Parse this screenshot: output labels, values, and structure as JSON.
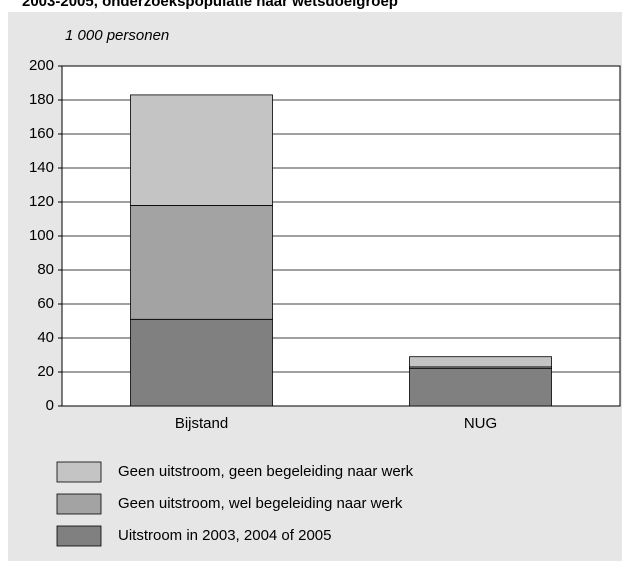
{
  "chart_data": {
    "type": "stacked_bar",
    "title": "2003-2005, onderzoekspopulatie naar wetsdoelgroep",
    "y_label": "1 000 personen",
    "categories": [
      "Bijstand",
      "NUG"
    ],
    "series": [
      {
        "name": "Uitstroom in 2003, 2004 of 2005",
        "color": "#808080",
        "values": [
          51,
          22
        ]
      },
      {
        "name": "Geen uitstroom, wel begeleiding naar werk",
        "color": "#a3a3a3",
        "values": [
          67,
          1
        ]
      },
      {
        "name": "Geen uitstroom, geen begeleiding naar werk",
        "color": "#c4c4c4",
        "values": [
          65,
          6
        ]
      }
    ],
    "ylim": [
      0,
      200
    ],
    "yticks": [
      0,
      20,
      40,
      60,
      80,
      100,
      120,
      140,
      160,
      180,
      200
    ],
    "grid": true
  }
}
